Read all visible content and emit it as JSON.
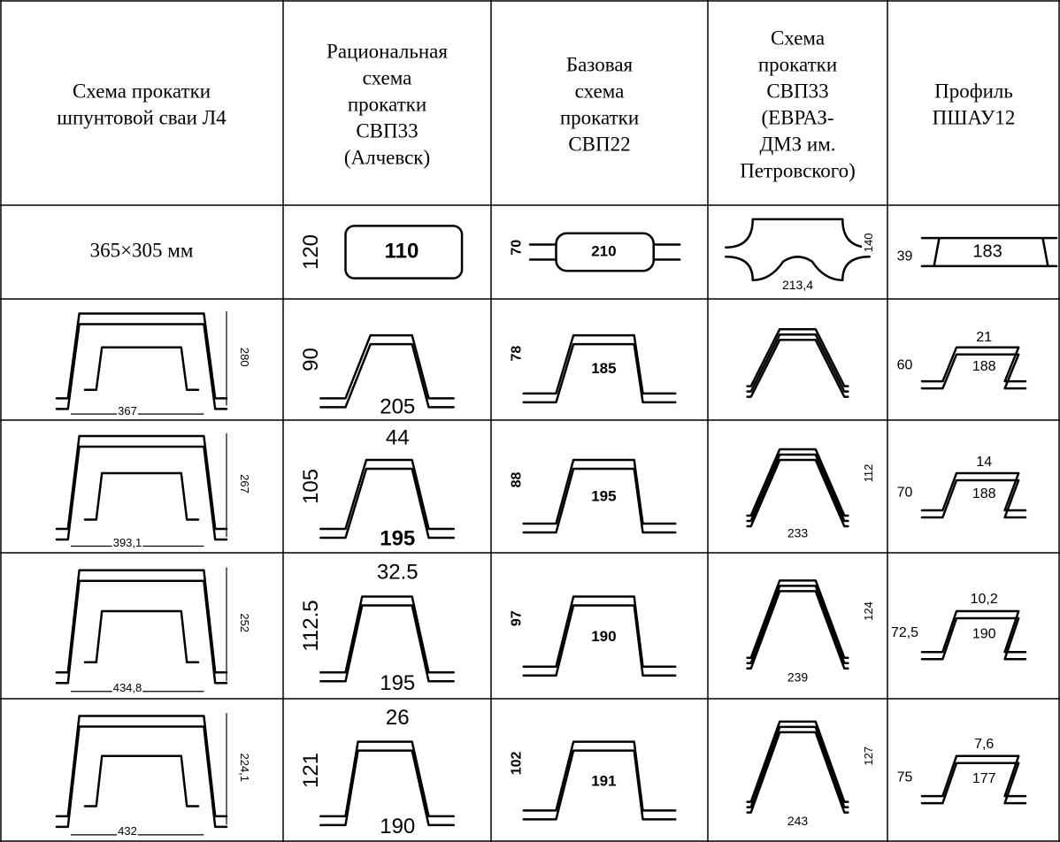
{
  "table": {
    "header": [
      [
        "Схема прокатки",
        "шпунтовой сваи Л4"
      ],
      [
        "Рациональная",
        "схема",
        "прокатки",
        "СВП33",
        "(Алчевск)"
      ],
      [
        "Базовая",
        "схема",
        "прокатки",
        "СВП22"
      ],
      [
        "Схема",
        "прокатки",
        "СВП33",
        "(ЕВРАЗ-",
        "ДМЗ им.",
        "Петровского)"
      ],
      [
        "Профиль",
        "ПШАУ12"
      ]
    ],
    "rows": [
      [
        "365×305 мм",
        {
          "labels": [
            "120",
            "110"
          ]
        },
        {
          "labels": [
            "70",
            "210"
          ]
        },
        {
          "labels": [
            "140",
            "213,4"
          ]
        },
        {
          "labels": [
            "39",
            "183"
          ]
        }
      ],
      [
        {
          "labels": [
            "280",
            "367"
          ]
        },
        {
          "labels": [
            "90",
            "205"
          ]
        },
        {
          "labels": [
            "78",
            "185"
          ]
        },
        {
          "labels": []
        },
        {
          "labels": [
            "60",
            "21",
            "188"
          ]
        }
      ],
      [
        {
          "labels": [
            "267",
            "393,1"
          ]
        },
        {
          "labels": [
            "105",
            "44",
            "195"
          ]
        },
        {
          "labels": [
            "88",
            "195"
          ]
        },
        {
          "labels": [
            "112",
            "233"
          ]
        },
        {
          "labels": [
            "70",
            "14",
            "188"
          ]
        }
      ],
      [
        {
          "labels": [
            "252",
            "434,8"
          ]
        },
        {
          "labels": [
            "112.5",
            "32.5",
            "195"
          ]
        },
        {
          "labels": [
            "97",
            "190"
          ]
        },
        {
          "labels": [
            "124",
            "239"
          ]
        },
        {
          "labels": [
            "72,5",
            "10,2",
            "190"
          ]
        }
      ],
      [
        {
          "labels": [
            "224,1",
            "432"
          ]
        },
        {
          "labels": [
            "121",
            "26",
            "190"
          ]
        },
        {
          "labels": [
            "102",
            "191"
          ]
        },
        {
          "labels": [
            "127",
            "243"
          ]
        },
        {
          "labels": [
            "75",
            "7,6",
            "177"
          ]
        }
      ]
    ]
  }
}
